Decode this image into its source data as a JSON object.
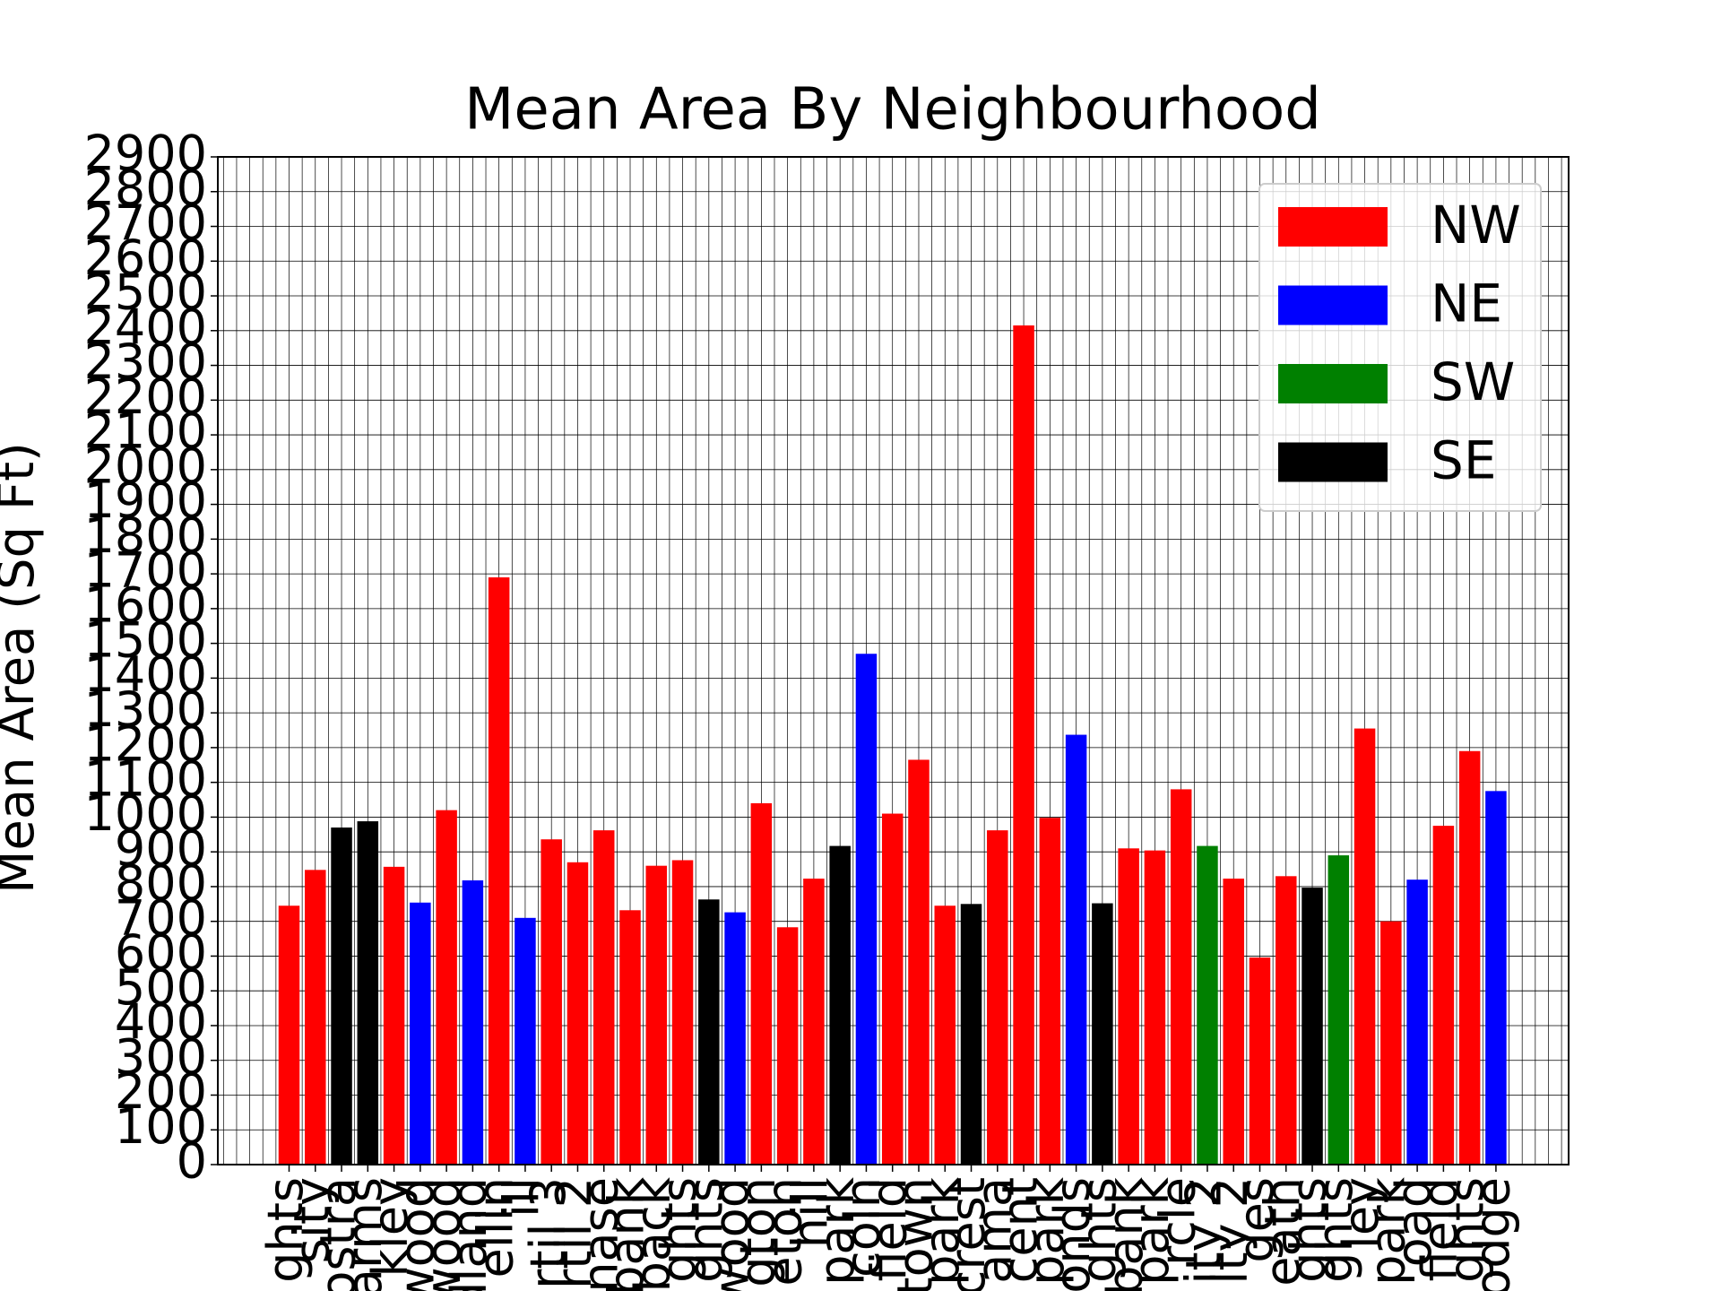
{
  "chart_data": {
    "type": "bar",
    "title": "Mean Area By Neighbourhood",
    "y_label": "Mean Area (Sq Ft)",
    "categories": [
      "ghts",
      "sity",
      "ostra",
      "arms",
      "kley",
      "wood",
      "wood",
      "dland",
      "ellin",
      "ill",
      "rtil 3",
      "rtil 2",
      "nase",
      "bank",
      "back",
      "ghts",
      "ghts",
      "wood",
      "gton",
      "eton",
      "hill",
      "park",
      "coln",
      "field",
      "town",
      "park",
      "crest",
      "ama",
      "cent",
      "park",
      "onds",
      "ghts",
      "bank",
      "park",
      "rcle",
      "ity 2",
      "ity 2",
      "ges",
      "eath",
      "ghts",
      "ghts",
      "ley",
      "park",
      "oad",
      "field",
      "ghts",
      "odge"
    ],
    "values": [
      745,
      848,
      970,
      988,
      857,
      754,
      1020,
      818,
      1690,
      710,
      936,
      870,
      962,
      732,
      860,
      876,
      763,
      726,
      1040,
      683,
      823,
      917,
      1470,
      1010,
      1165,
      745,
      750,
      962,
      2415,
      998,
      1237,
      752,
      910,
      904,
      1080,
      917,
      823,
      596,
      830,
      797,
      890,
      1255,
      700,
      820,
      975,
      1190,
      1075
    ],
    "colors": [
      "#ff0000",
      "#ff0000",
      "#000000",
      "#000000",
      "#ff0000",
      "#0000ff",
      "#ff0000",
      "#0000ff",
      "#ff0000",
      "#0000ff",
      "#ff0000",
      "#ff0000",
      "#ff0000",
      "#ff0000",
      "#ff0000",
      "#ff0000",
      "#000000",
      "#0000ff",
      "#ff0000",
      "#ff0000",
      "#ff0000",
      "#000000",
      "#0000ff",
      "#ff0000",
      "#ff0000",
      "#ff0000",
      "#000000",
      "#ff0000",
      "#ff0000",
      "#ff0000",
      "#0000ff",
      "#000000",
      "#ff0000",
      "#ff0000",
      "#ff0000",
      "#008000",
      "#ff0000",
      "#ff0000",
      "#ff0000",
      "#000000",
      "#008000",
      "#ff0000",
      "#ff0000",
      "#0000ff",
      "#ff0000",
      "#ff0000",
      "#0000ff"
    ],
    "legend": [
      {
        "name": "NW",
        "color": "#ff0000"
      },
      {
        "name": "NE",
        "color": "#0000ff"
      },
      {
        "name": "SW",
        "color": "#008000"
      },
      {
        "name": "SE",
        "color": "#000000"
      }
    ],
    "legend_position": "upper right",
    "ylim": [
      0,
      2900
    ],
    "yticks": [
      0,
      100,
      200,
      300,
      400,
      500,
      600,
      700,
      800,
      900,
      1000,
      1100,
      1200,
      1300,
      1400,
      1500,
      1600,
      1700,
      1800,
      1900,
      2000,
      2100,
      2200,
      2300,
      2400,
      2500,
      2600,
      2700,
      2800,
      2900
    ],
    "grid": true
  }
}
